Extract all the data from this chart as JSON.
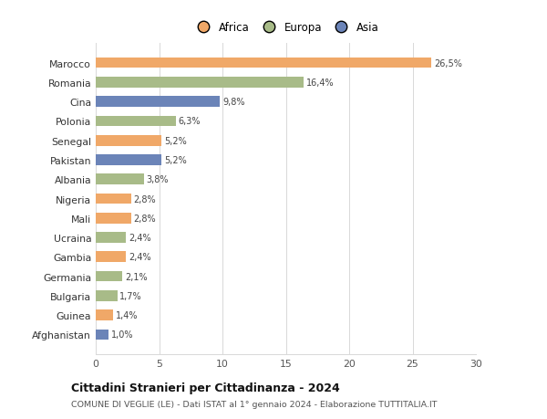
{
  "countries": [
    "Afghanistan",
    "Guinea",
    "Bulgaria",
    "Germania",
    "Gambia",
    "Ucraina",
    "Mali",
    "Nigeria",
    "Albania",
    "Pakistan",
    "Senegal",
    "Polonia",
    "Cina",
    "Romania",
    "Marocco"
  ],
  "values": [
    1.0,
    1.4,
    1.7,
    2.1,
    2.4,
    2.4,
    2.8,
    2.8,
    3.8,
    5.2,
    5.2,
    6.3,
    9.8,
    16.4,
    26.5
  ],
  "colors": [
    "#6b84b8",
    "#f0a868",
    "#a8bb88",
    "#a8bb88",
    "#f0a868",
    "#a8bb88",
    "#f0a868",
    "#f0a868",
    "#a8bb88",
    "#6b84b8",
    "#f0a868",
    "#a8bb88",
    "#6b84b8",
    "#a8bb88",
    "#f0a868"
  ],
  "labels": [
    "1,0%",
    "1,4%",
    "1,7%",
    "2,1%",
    "2,4%",
    "2,4%",
    "2,8%",
    "2,8%",
    "3,8%",
    "5,2%",
    "5,2%",
    "6,3%",
    "9,8%",
    "16,4%",
    "26,5%"
  ],
  "legend_labels": [
    "Africa",
    "Europa",
    "Asia"
  ],
  "legend_colors": [
    "#f0a868",
    "#a8bb88",
    "#6b84b8"
  ],
  "title": "Cittadini Stranieri per Cittadinanza - 2024",
  "subtitle": "COMUNE DI VEGLIE (LE) - Dati ISTAT al 1° gennaio 2024 - Elaborazione TUTTITALIA.IT",
  "xlim": [
    0,
    30
  ],
  "xticks": [
    0,
    5,
    10,
    15,
    20,
    25,
    30
  ],
  "bg_color": "#ffffff",
  "grid_color": "#d8d8d8",
  "bar_height": 0.55
}
